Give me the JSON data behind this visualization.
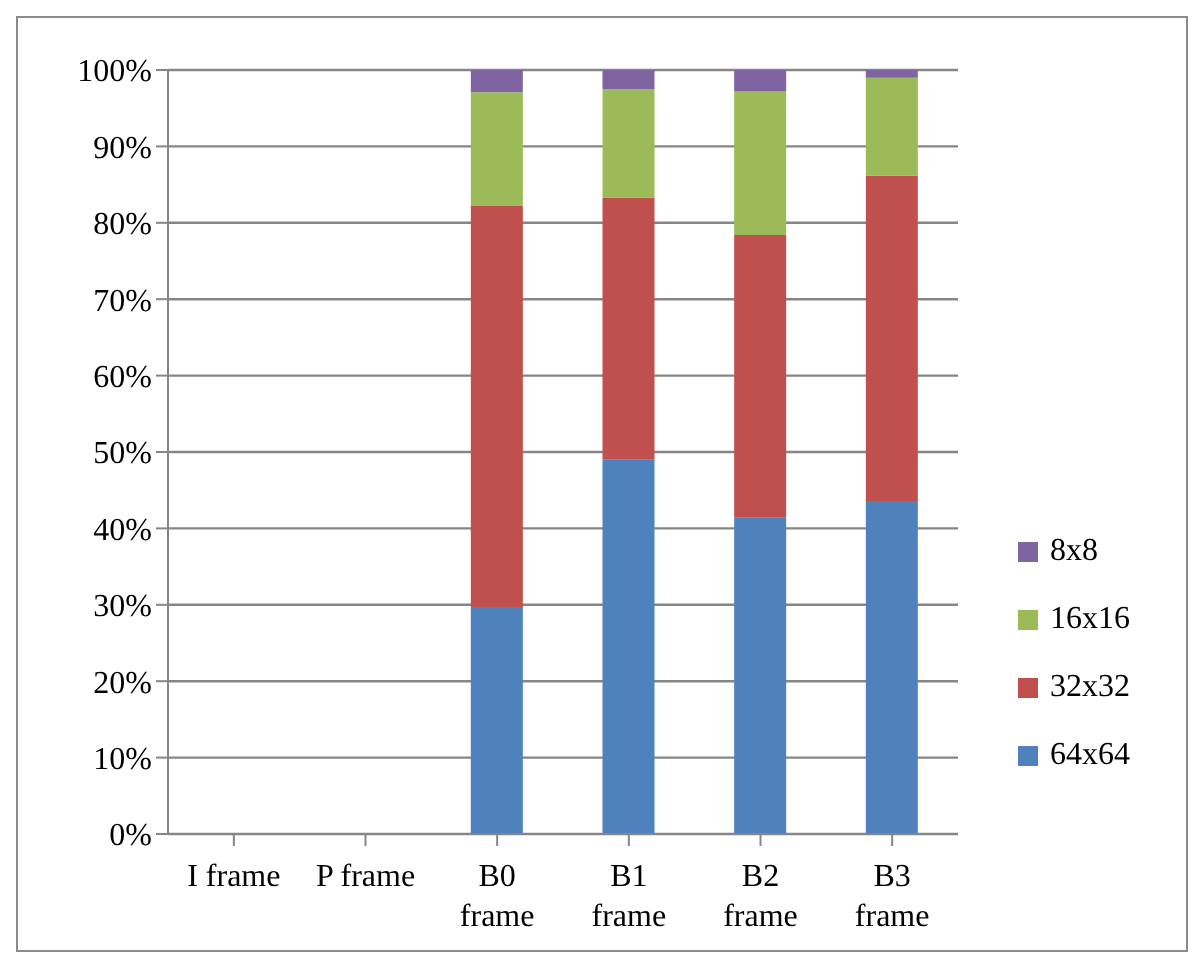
{
  "chart_data": {
    "type": "bar",
    "stacked": true,
    "categories": [
      "I frame",
      "P frame",
      "B0 frame",
      "B1 frame",
      "B2 frame",
      "B3 frame"
    ],
    "series": [
      {
        "name": "64x64",
        "color": "#4f81bd",
        "values": [
          null,
          null,
          29.7,
          49.0,
          41.4,
          43.6
        ]
      },
      {
        "name": "32x32",
        "color": "#c0504d",
        "values": [
          null,
          null,
          52.5,
          34.3,
          37.0,
          42.6
        ]
      },
      {
        "name": "16x16",
        "color": "#9bbb59",
        "values": [
          null,
          null,
          14.9,
          14.2,
          18.8,
          12.8
        ]
      },
      {
        "name": "8x8",
        "color": "#8064a2",
        "values": [
          null,
          null,
          2.9,
          2.5,
          2.8,
          1.0
        ]
      }
    ],
    "ylim": [
      0,
      100
    ],
    "yticks": [
      {
        "value": 0,
        "label": "0%"
      },
      {
        "value": 10,
        "label": "10%"
      },
      {
        "value": 20,
        "label": "20%"
      },
      {
        "value": 30,
        "label": "30%"
      },
      {
        "value": 40,
        "label": "40%"
      },
      {
        "value": 50,
        "label": "50%"
      },
      {
        "value": 60,
        "label": "60%"
      },
      {
        "value": 70,
        "label": "70%"
      },
      {
        "value": 80,
        "label": "80%"
      },
      {
        "value": 90,
        "label": "90%"
      },
      {
        "value": 100,
        "label": "100%"
      }
    ],
    "grid": "y",
    "legend": "right"
  }
}
